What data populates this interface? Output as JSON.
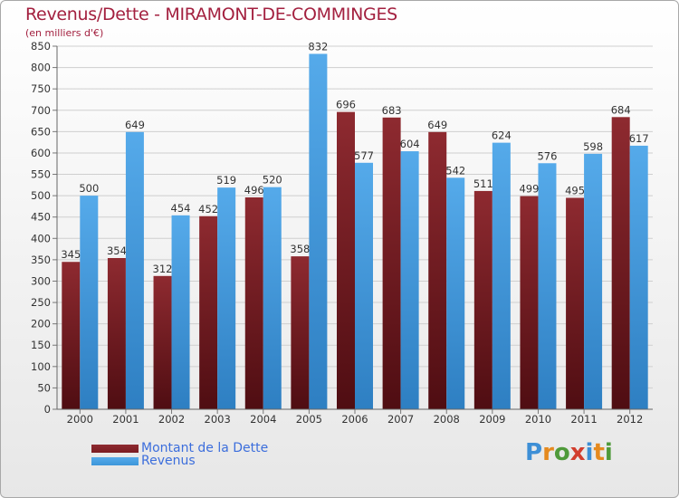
{
  "header": {
    "title": "Revenus/Dette - MIRAMONT-DE-COMMINGES",
    "subtitle": "(en milliers d'€)"
  },
  "colors": {
    "dette": "#7a1c22",
    "revenus": "#3d96da",
    "title": "#a3203f",
    "legend_text": "#3c6edc"
  },
  "chart_data": {
    "type": "bar",
    "categories": [
      "2000",
      "2001",
      "2002",
      "2003",
      "2004",
      "2005",
      "2006",
      "2007",
      "2008",
      "2009",
      "2010",
      "2011",
      "2012"
    ],
    "series": [
      {
        "name": "Montant de la Dette",
        "values": [
          345,
          354,
          312,
          452,
          496,
          358,
          696,
          683,
          649,
          511,
          499,
          495,
          684
        ]
      },
      {
        "name": "Revenus",
        "values": [
          500,
          649,
          454,
          519,
          520,
          832,
          577,
          604,
          542,
          624,
          576,
          598,
          617
        ]
      }
    ],
    "ylim": [
      0,
      850
    ],
    "yticks": [
      0,
      50,
      100,
      150,
      200,
      250,
      300,
      350,
      400,
      450,
      500,
      550,
      600,
      650,
      700,
      750,
      800,
      850
    ],
    "grid": true,
    "legend": "bottom-left",
    "title": "Revenus/Dette - MIRAMONT-DE-COMMINGES",
    "ylabel": "(en milliers d'€)"
  },
  "legend": {
    "items": [
      {
        "label": "Montant de la Dette"
      },
      {
        "label": "Revenus"
      }
    ]
  },
  "logo": {
    "text": "Proxiti"
  }
}
